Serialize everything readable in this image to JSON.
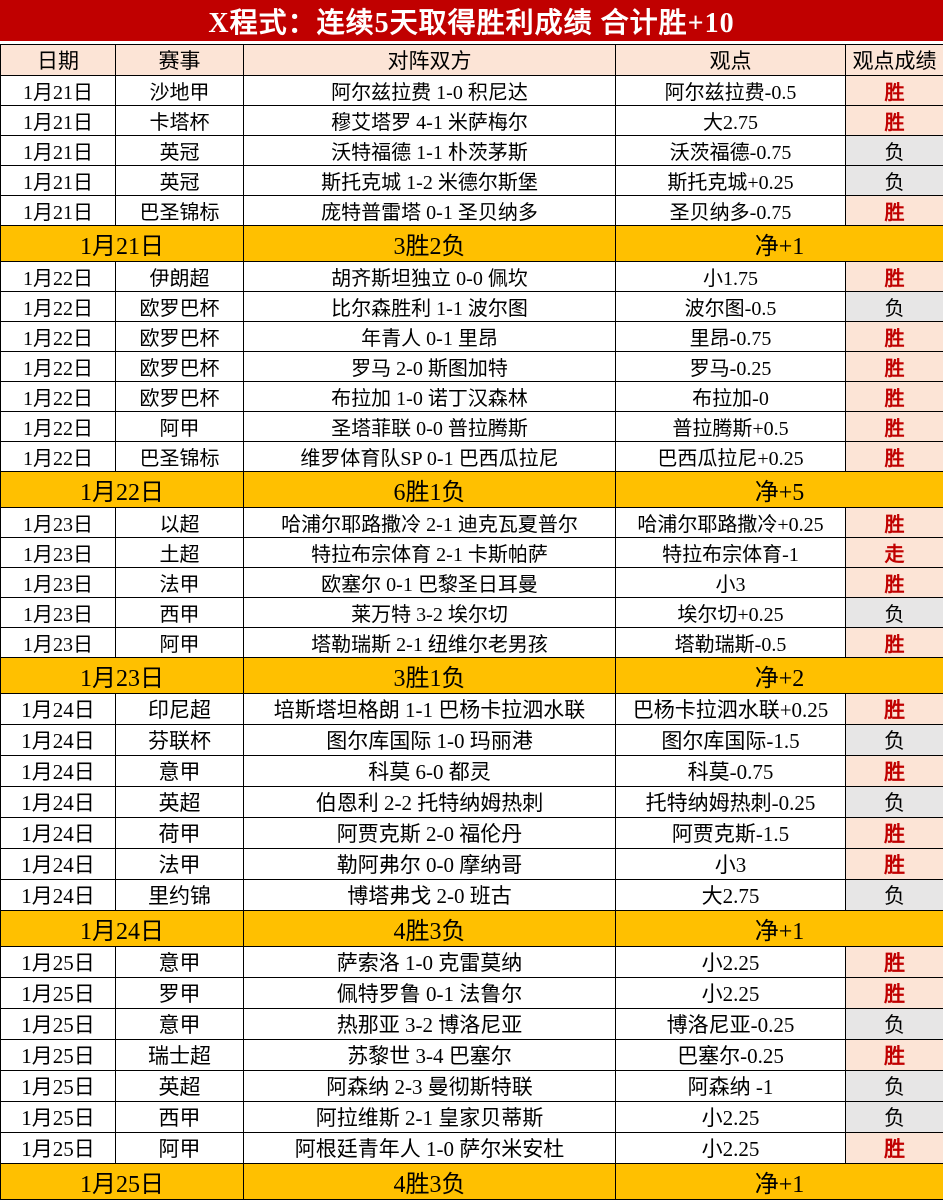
{
  "title": "X程式：连续5天取得胜利成绩 合计胜+10",
  "columns": [
    "日期",
    "赛事",
    "对阵双方",
    "观点",
    "观点成绩"
  ],
  "result_labels": {
    "win": "胜",
    "lose": "负",
    "push": "走"
  },
  "colors": {
    "title_bg": "#c00000",
    "title_text": "#ffffff",
    "header_bg": "#fce4d6",
    "summary_bg": "#ffc000",
    "win_bg": "#fce4d6",
    "win_text": "#c00000",
    "lose_bg": "#e7e6e6",
    "grid": "#000000"
  },
  "sections": [
    {
      "rows": [
        {
          "date": "1月21日",
          "league": "沙地甲",
          "match": "阿尔兹拉费 1-0 积尼达",
          "pick": "阿尔兹拉费-0.5",
          "result": "胜"
        },
        {
          "date": "1月21日",
          "league": "卡塔杯",
          "match": "穆艾塔罗 4-1 米萨梅尔",
          "pick": "大2.75",
          "result": "胜"
        },
        {
          "date": "1月21日",
          "league": "英冠",
          "match": "沃特福德 1-1 朴茨茅斯",
          "pick": "沃茨福德-0.75",
          "result": "负"
        },
        {
          "date": "1月21日",
          "league": "英冠",
          "match": "斯托克城 1-2 米德尔斯堡",
          "pick": "斯托克城+0.25",
          "result": "负"
        },
        {
          "date": "1月21日",
          "league": "巴圣锦标",
          "match": "庞特普雷塔 0-1 圣贝纳多",
          "pick": "圣贝纳多-0.75",
          "result": "胜"
        }
      ],
      "summary": {
        "date": "1月21日",
        "record": "3胜2负",
        "net": "净+1"
      }
    },
    {
      "rows": [
        {
          "date": "1月22日",
          "league": "伊朗超",
          "match": "胡齐斯坦独立 0-0 佩坎",
          "pick": "小1.75",
          "result": "胜"
        },
        {
          "date": "1月22日",
          "league": "欧罗巴杯",
          "match": "比尔森胜利 1-1 波尔图",
          "pick": "波尔图-0.5",
          "result": "负"
        },
        {
          "date": "1月22日",
          "league": "欧罗巴杯",
          "match": "年青人 0-1 里昂",
          "pick": "里昂-0.75",
          "result": "胜"
        },
        {
          "date": "1月22日",
          "league": "欧罗巴杯",
          "match": "罗马 2-0 斯图加特",
          "pick": "罗马-0.25",
          "result": "胜"
        },
        {
          "date": "1月22日",
          "league": "欧罗巴杯",
          "match": "布拉加 1-0 诺丁汉森林",
          "pick": "布拉加-0",
          "result": "胜"
        },
        {
          "date": "1月22日",
          "league": "阿甲",
          "match": "圣塔菲联 0-0 普拉腾斯",
          "pick": "普拉腾斯+0.5",
          "result": "胜"
        },
        {
          "date": "1月22日",
          "league": "巴圣锦标",
          "match": "维罗体育队SP 0-1 巴西瓜拉尼",
          "pick": "巴西瓜拉尼+0.25",
          "result": "胜"
        }
      ],
      "summary": {
        "date": "1月22日",
        "record": "6胜1负",
        "net": "净+5"
      }
    },
    {
      "rows": [
        {
          "date": "1月23日",
          "league": "以超",
          "match": "哈浦尔耶路撒冷 2-1 迪克瓦夏普尔",
          "pick": "哈浦尔耶路撒冷+0.25",
          "result": "胜"
        },
        {
          "date": "1月23日",
          "league": "土超",
          "match": "特拉布宗体育 2-1 卡斯帕萨",
          "pick": "特拉布宗体育-1",
          "result": "走"
        },
        {
          "date": "1月23日",
          "league": "法甲",
          "match": "欧塞尔 0-1 巴黎圣日耳曼",
          "pick": "小3",
          "result": "胜"
        },
        {
          "date": "1月23日",
          "league": "西甲",
          "match": "莱万特 3-2 埃尔切",
          "pick": "埃尔切+0.25",
          "result": "负"
        },
        {
          "date": "1月23日",
          "league": "阿甲",
          "match": "塔勒瑞斯 2-1 纽维尔老男孩",
          "pick": "塔勒瑞斯-0.5",
          "result": "胜"
        }
      ],
      "summary": {
        "date": "1月23日",
        "record": "3胜1负",
        "net": "净+2"
      }
    },
    {
      "rows": [
        {
          "date": "1月24日",
          "league": "印尼超",
          "match": "培斯塔坦格朗 1-1 巴杨卡拉泗水联",
          "pick": "巴杨卡拉泗水联+0.25",
          "result": "胜"
        },
        {
          "date": "1月24日",
          "league": "芬联杯",
          "match": "图尔库国际 1-0 玛丽港",
          "pick": "图尔库国际-1.5",
          "result": "负"
        },
        {
          "date": "1月24日",
          "league": "意甲",
          "match": "科莫 6-0 都灵",
          "pick": "科莫-0.75",
          "result": "胜"
        },
        {
          "date": "1月24日",
          "league": "英超",
          "match": "伯恩利 2-2 托特纳姆热刺",
          "pick": "托特纳姆热刺-0.25",
          "result": "负"
        },
        {
          "date": "1月24日",
          "league": "荷甲",
          "match": "阿贾克斯 2-0 福伦丹",
          "pick": "阿贾克斯-1.5",
          "result": "胜"
        },
        {
          "date": "1月24日",
          "league": "法甲",
          "match": "勒阿弗尔 0-0 摩纳哥",
          "pick": "小3",
          "result": "胜"
        },
        {
          "date": "1月24日",
          "league": "里约锦",
          "match": "博塔弗戈 2-0 班古",
          "pick": "大2.75",
          "result": "负"
        }
      ],
      "summary": {
        "date": "1月24日",
        "record": "4胜3负",
        "net": "净+1"
      }
    },
    {
      "rows": [
        {
          "date": "1月25日",
          "league": "意甲",
          "match": "萨索洛 1-0 克雷莫纳",
          "pick": "小2.25",
          "result": "胜"
        },
        {
          "date": "1月25日",
          "league": "罗甲",
          "match": "佩特罗鲁 0-1 法鲁尔",
          "pick": "小2.25",
          "result": "胜"
        },
        {
          "date": "1月25日",
          "league": "意甲",
          "match": "热那亚 3-2 博洛尼亚",
          "pick": "博洛尼亚-0.25",
          "result": "负"
        },
        {
          "date": "1月25日",
          "league": "瑞士超",
          "match": "苏黎世 3-4 巴塞尔",
          "pick": "巴塞尔-0.25",
          "result": "胜"
        },
        {
          "date": "1月25日",
          "league": "英超",
          "match": "阿森纳 2-3 曼彻斯特联",
          "pick": "阿森纳 -1",
          "result": "负"
        },
        {
          "date": "1月25日",
          "league": "西甲",
          "match": "阿拉维斯 2-1 皇家贝蒂斯",
          "pick": "小2.25",
          "result": "负"
        },
        {
          "date": "1月25日",
          "league": "阿甲",
          "match": "阿根廷青年人 1-0 萨尔米安杜",
          "pick": "小2.25",
          "result": "胜"
        }
      ],
      "summary": {
        "date": "1月25日",
        "record": "4胜3负",
        "net": "净+1"
      }
    }
  ]
}
